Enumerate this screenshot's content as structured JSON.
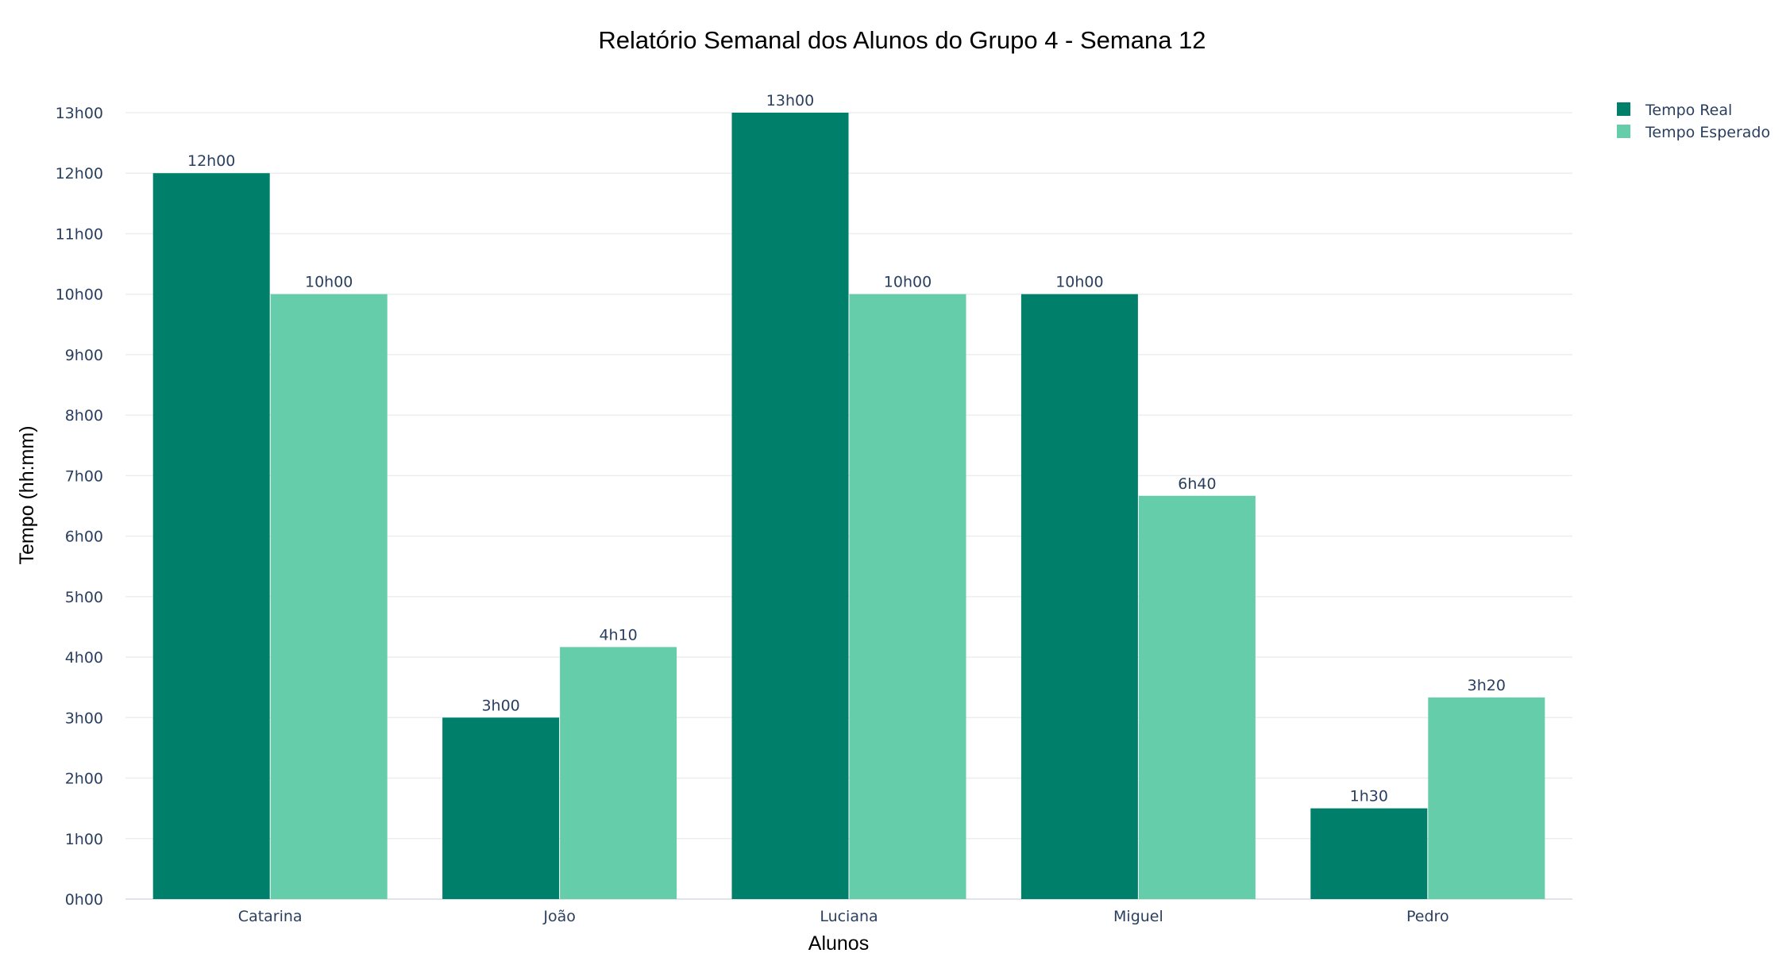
{
  "chart_data": {
    "type": "bar",
    "title": "Relatório Semanal dos Alunos do Grupo 4 - Semana 12",
    "xlabel": "Alunos",
    "ylabel": "Tempo (hh:mm)",
    "categories": [
      "Catarina",
      "João",
      "Luciana",
      "Miguel",
      "Pedro"
    ],
    "ylim": [
      0,
      13
    ],
    "yticks": [
      {
        "value": 0,
        "label": "0h00"
      },
      {
        "value": 1,
        "label": "1h00"
      },
      {
        "value": 2,
        "label": "2h00"
      },
      {
        "value": 3,
        "label": "3h00"
      },
      {
        "value": 4,
        "label": "4h00"
      },
      {
        "value": 5,
        "label": "5h00"
      },
      {
        "value": 6,
        "label": "6h00"
      },
      {
        "value": 7,
        "label": "7h00"
      },
      {
        "value": 8,
        "label": "8h00"
      },
      {
        "value": 9,
        "label": "9h00"
      },
      {
        "value": 10,
        "label": "10h00"
      },
      {
        "value": 11,
        "label": "11h00"
      },
      {
        "value": 12,
        "label": "12h00"
      },
      {
        "value": 13,
        "label": "13h00"
      }
    ],
    "grid": true,
    "legend_position": "top-right",
    "series": [
      {
        "name": "Tempo Real",
        "color": "#00806a",
        "values": [
          12,
          3,
          13,
          10,
          1.5
        ],
        "labels": [
          "12h00",
          "3h00",
          "13h00",
          "10h00",
          "1h30"
        ]
      },
      {
        "name": "Tempo Esperado",
        "color": "#66cdaa",
        "values": [
          10,
          4.1667,
          10,
          6.6667,
          3.3333
        ],
        "labels": [
          "10h00",
          "4h10",
          "10h00",
          "6h40",
          "3h20"
        ]
      }
    ]
  }
}
